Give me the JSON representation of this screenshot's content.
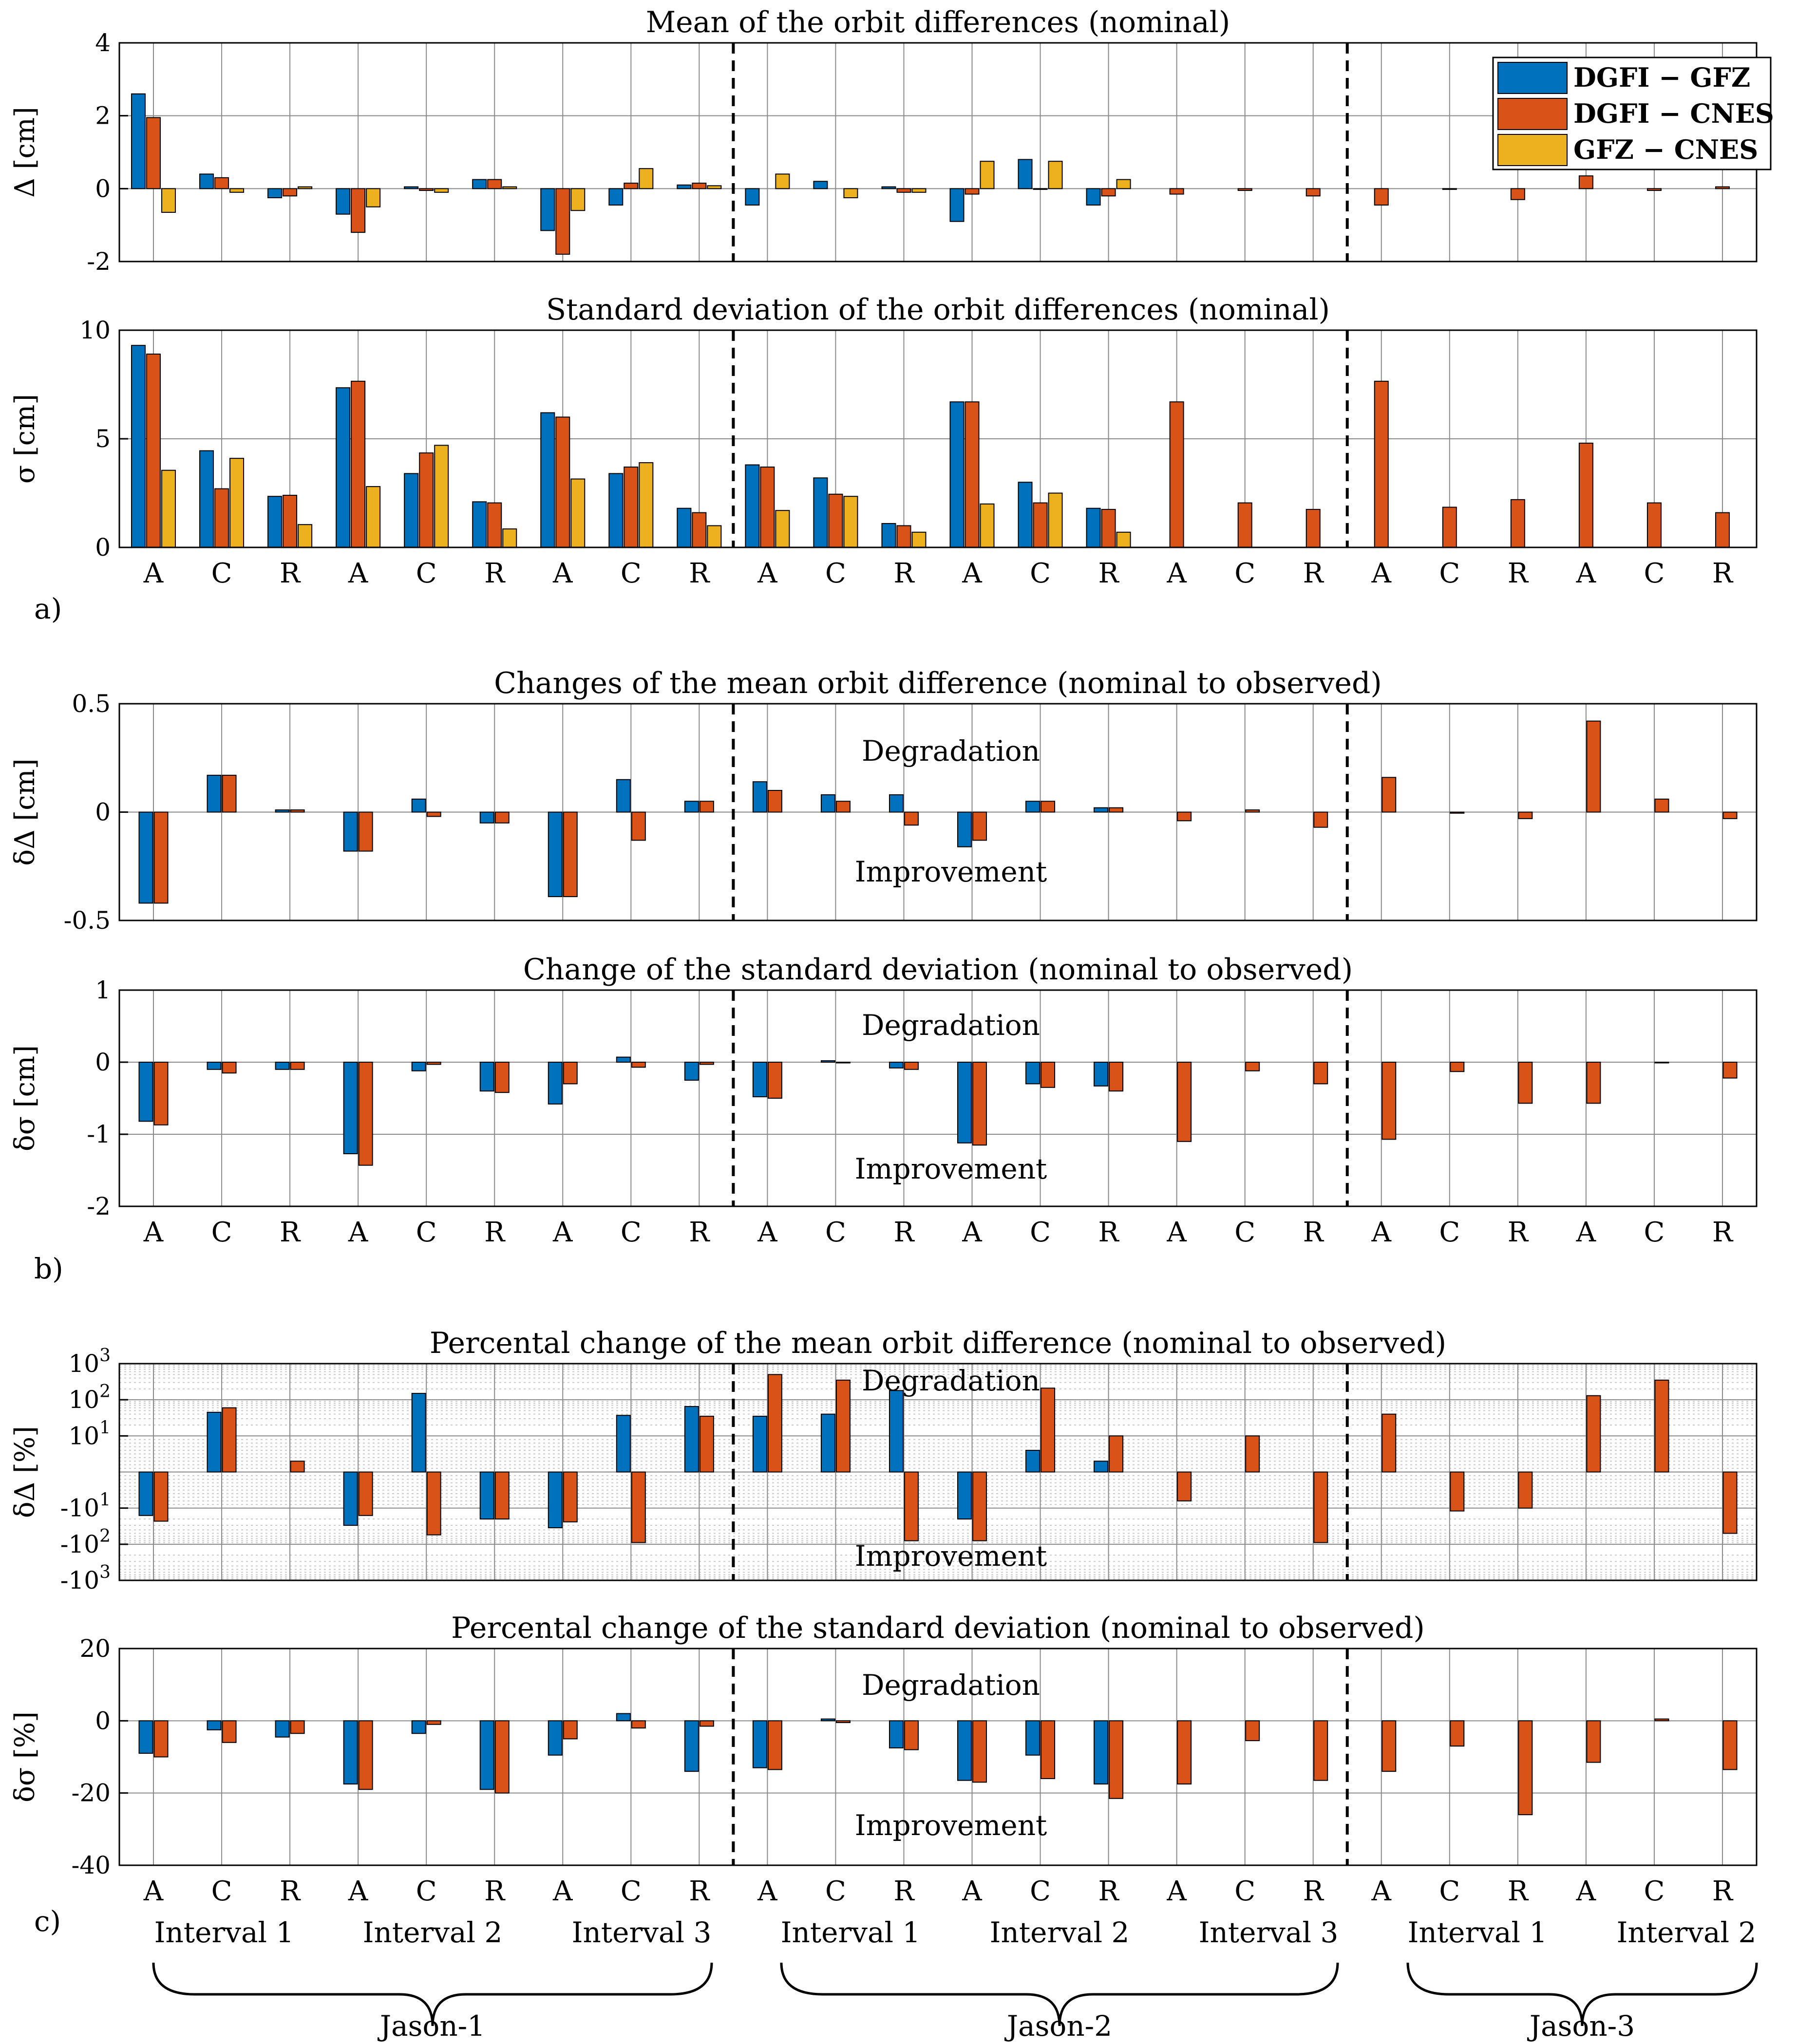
{
  "colors": {
    "DGFI - GFZ": "#0072bd",
    "DGFI - CNES": "#d95319",
    "GFZ - CNES": "#edb120"
  },
  "categories": [
    "A",
    "C",
    "R",
    "A",
    "C",
    "R",
    "A",
    "C",
    "R",
    "A",
    "C",
    "R",
    "A",
    "C",
    "R",
    "A",
    "C",
    "R",
    "A",
    "C",
    "R",
    "A",
    "C",
    "R"
  ],
  "separators_after_index": [
    8,
    17
  ],
  "panel_tags": [
    "a)",
    "b)",
    "c)"
  ],
  "annotations": {
    "degradation": "Degradation",
    "improvement": "Improvement"
  },
  "legend": [
    "DGFI  −  GFZ",
    "DGFI  −  CNES",
    "GFZ   −  CNES"
  ],
  "intervals": [
    "Interval 1",
    "Interval 2",
    "Interval 3",
    "Interval 1",
    "Interval 2",
    "Interval 3",
    "Interval 1",
    "Interval 2"
  ],
  "missions": [
    "Jason-1",
    "Jason-2",
    "Jason-3"
  ],
  "chart_data": [
    {
      "type": "bar",
      "title": "Mean of the orbit differences (nominal)",
      "ylabel": "Δ [cm]",
      "ylim": [
        -2,
        4
      ],
      "yticks": [
        -2,
        0,
        2,
        4
      ],
      "grid": true,
      "legend_position": "top-right",
      "series": [
        {
          "name": "DGFI  −  GFZ",
          "values": [
            2.6,
            0.4,
            -0.25,
            -0.7,
            0.05,
            0.25,
            -1.15,
            -0.45,
            0.1,
            -0.45,
            0.2,
            0.05,
            -0.9,
            0.8,
            -0.45,
            null,
            null,
            null,
            null,
            null,
            null,
            null,
            null,
            null
          ]
        },
        {
          "name": "DGFI  −  CNES",
          "values": [
            1.95,
            0.3,
            -0.2,
            -1.2,
            -0.05,
            0.25,
            -1.8,
            0.15,
            0.15,
            null,
            null,
            -0.1,
            -0.15,
            0.0,
            -0.2,
            -0.15,
            -0.05,
            -0.2,
            -0.45,
            0.0,
            -0.3,
            0.35,
            -0.05,
            0.05
          ]
        },
        {
          "name": "GFZ   −  CNES",
          "values": [
            -0.65,
            -0.1,
            0.05,
            -0.5,
            -0.1,
            0.05,
            -0.6,
            0.55,
            0.08,
            0.4,
            -0.25,
            -0.1,
            0.75,
            0.75,
            0.25,
            null,
            null,
            null,
            null,
            null,
            null,
            null,
            null,
            null
          ]
        }
      ]
    },
    {
      "type": "bar",
      "title": "Standard deviation of the orbit differences (nominal)",
      "ylabel": "σ [cm]",
      "ylim": [
        0,
        10
      ],
      "yticks": [
        0,
        5,
        10
      ],
      "grid": true,
      "series": [
        {
          "name": "DGFI  −  GFZ",
          "values": [
            9.3,
            4.45,
            2.35,
            7.35,
            3.4,
            2.1,
            6.2,
            3.4,
            1.8,
            3.8,
            3.2,
            1.1,
            6.7,
            3.0,
            1.8,
            null,
            null,
            null,
            null,
            null,
            null,
            null,
            null,
            null
          ]
        },
        {
          "name": "DGFI  −  CNES",
          "values": [
            8.9,
            2.7,
            2.4,
            7.65,
            4.35,
            2.05,
            6.0,
            3.7,
            1.6,
            3.7,
            2.45,
            1.0,
            6.7,
            2.05,
            1.75,
            6.7,
            2.05,
            1.75,
            7.65,
            1.85,
            2.2,
            4.8,
            2.05,
            1.6
          ]
        },
        {
          "name": "GFZ   −  CNES",
          "values": [
            3.55,
            4.1,
            1.05,
            2.8,
            4.7,
            0.85,
            3.15,
            3.9,
            1.0,
            1.7,
            2.35,
            0.7,
            2.0,
            2.5,
            0.7,
            null,
            null,
            null,
            null,
            null,
            null,
            null,
            null,
            null
          ]
        }
      ]
    },
    {
      "type": "bar",
      "title": "Changes of the mean orbit difference (nominal to observed)",
      "ylabel": "δΔ [cm]",
      "ylim": [
        -0.5,
        0.5
      ],
      "yticks": [
        -0.5,
        0,
        0.5
      ],
      "grid": true,
      "series": [
        {
          "name": "DGFI  −  GFZ",
          "values": [
            -0.42,
            0.17,
            0.01,
            -0.18,
            0.06,
            -0.05,
            -0.39,
            0.15,
            0.05,
            0.14,
            0.08,
            0.08,
            -0.16,
            0.05,
            0.02,
            null,
            null,
            null,
            null,
            null,
            null,
            null,
            null,
            null
          ]
        },
        {
          "name": "DGFI  −  CNES",
          "values": [
            -0.42,
            0.17,
            0.01,
            -0.18,
            -0.02,
            -0.05,
            -0.39,
            -0.13,
            0.05,
            0.1,
            0.05,
            -0.06,
            -0.13,
            0.05,
            0.02,
            -0.04,
            0.01,
            -0.07,
            0.16,
            -0.005,
            -0.03,
            0.42,
            0.06,
            -0.03
          ]
        }
      ]
    },
    {
      "type": "bar",
      "title": "Change of the standard deviation (nominal to observed)",
      "ylabel": "δσ [cm]",
      "ylim": [
        -2,
        1
      ],
      "yticks": [
        -2,
        -1,
        0,
        1
      ],
      "grid": true,
      "series": [
        {
          "name": "DGFI  −  GFZ",
          "values": [
            -0.82,
            -0.1,
            -0.1,
            -1.27,
            -0.12,
            -0.4,
            -0.58,
            0.07,
            -0.25,
            -0.48,
            0.02,
            -0.08,
            -1.12,
            -0.3,
            -0.33,
            null,
            null,
            null,
            null,
            null,
            null,
            null,
            null,
            null
          ]
        },
        {
          "name": "DGFI  −  CNES",
          "values": [
            -0.87,
            -0.15,
            -0.1,
            -1.43,
            -0.03,
            -0.42,
            -0.3,
            -0.07,
            -0.03,
            -0.5,
            0.0,
            -0.1,
            -1.15,
            -0.35,
            -0.4,
            -1.1,
            -0.12,
            -0.3,
            -1.07,
            -0.13,
            -0.57,
            -0.57,
            0.0,
            -0.22
          ]
        }
      ]
    },
    {
      "type": "bar",
      "title": "Percental change of the mean orbit difference (nominal to observed)",
      "ylabel": "δΔ [%]",
      "yscale": "symlog",
      "ylim": [
        -1000,
        1000
      ],
      "yticks": [
        -1000,
        -100,
        -10,
        10,
        100,
        1000
      ],
      "grid": true,
      "series": [
        {
          "name": "DGFI  −  GFZ",
          "values": [
            -16,
            45,
            null,
            -30,
            150,
            -20,
            -35,
            37,
            65,
            35,
            40,
            180,
            -20,
            6,
            3,
            null,
            null,
            null,
            null,
            null,
            null,
            null,
            null,
            null
          ]
        },
        {
          "name": "DGFI  −  CNES",
          "values": [
            -23,
            60,
            3,
            -16,
            -55,
            -20,
            -24,
            -90,
            35,
            500,
            350,
            -80,
            -80,
            210,
            10,
            -8,
            10,
            -90,
            40,
            -12,
            -10,
            130,
            350,
            -50
          ]
        }
      ]
    },
    {
      "type": "bar",
      "title": "Percental change of the standard deviation (nominal to observed)",
      "ylabel": "δσ [%]",
      "ylim": [
        -40,
        20
      ],
      "yticks": [
        -40,
        -20,
        0,
        20
      ],
      "grid": true,
      "series": [
        {
          "name": "DGFI  −  GFZ",
          "values": [
            -9,
            -2.5,
            -4.5,
            -17.5,
            -3.5,
            -19,
            -9.5,
            2,
            -14,
            -13,
            0.5,
            -7.5,
            -16.5,
            -9.5,
            -17.5,
            null,
            null,
            null,
            null,
            null,
            null,
            null,
            null,
            null
          ]
        },
        {
          "name": "DGFI  −  CNES",
          "values": [
            -10,
            -6,
            -3.5,
            -19,
            -1,
            -20,
            -5,
            -2,
            -1.5,
            -13.5,
            -0.5,
            -8,
            -17,
            -16,
            -21.5,
            -17.5,
            -5.5,
            -16.5,
            -14,
            -7,
            -26,
            -11.5,
            0.5,
            -13.5
          ]
        }
      ]
    }
  ]
}
